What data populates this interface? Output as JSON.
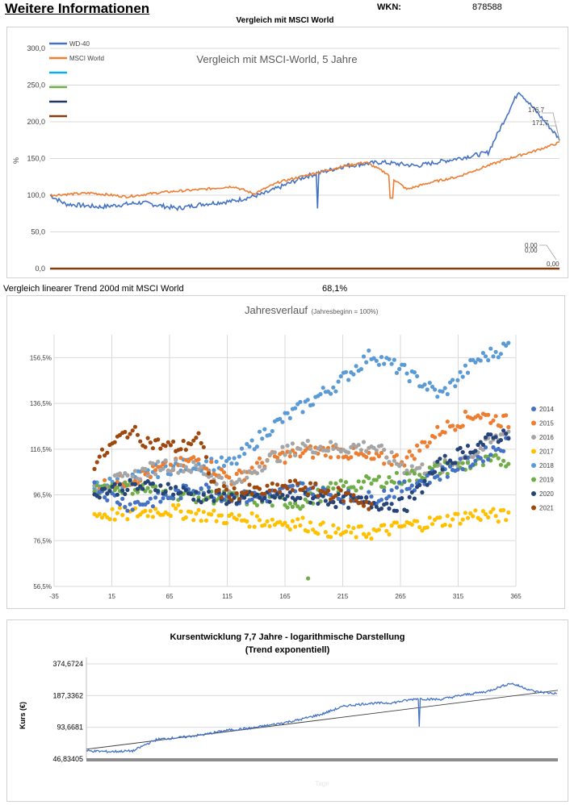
{
  "header": {
    "title": "Weitere Informationen",
    "wkn_label": "WKN:",
    "wkn_value": "878588",
    "chart1_title": "Vergleich mit MSCI World"
  },
  "trend": {
    "label": "Vergleich linearer Trend 200d mit MSCI World",
    "value": "68,1%"
  },
  "colors": {
    "wd40": "#4472c4",
    "msci": "#ed7d31",
    "cyan": "#00b0f0",
    "green": "#70ad47",
    "navy": "#1f3864",
    "brown": "#843c0c",
    "y2014": "#4472c4",
    "y2015": "#ed7d31",
    "y2016": "#a5a5a5",
    "y2017": "#ffc000",
    "y2018": "#5b9bd5",
    "y2019": "#70ad47",
    "y2020": "#264478",
    "y2021": "#9e480e"
  },
  "chart_data": [
    {
      "type": "line",
      "title": "Vergleich mit MSCI-World, 5 Jahre",
      "ylabel": "%",
      "ylim": [
        0,
        300
      ],
      "yticks": [
        "0,0",
        "50,0",
        "100,0",
        "150,0",
        "200,0",
        "250,0",
        "300,0"
      ],
      "legend": [
        "WD-40",
        "MSCI World",
        "",
        "",
        "",
        ""
      ],
      "end_labels": [
        "176,7",
        "171,7",
        "0,00",
        "0,00",
        "0,00"
      ],
      "series": [
        {
          "name": "WD-40",
          "x": [
            0,
            3,
            10,
            18,
            25,
            30,
            36,
            42,
            50,
            58,
            65,
            72,
            80,
            86,
            92,
            100
          ],
          "values": [
            100,
            88,
            84,
            90,
            82,
            88,
            92,
            102,
            125,
            140,
            145,
            140,
            150,
            158,
            242,
            176.7
          ]
        },
        {
          "name": "MSCI World",
          "x": [
            0,
            8,
            15,
            22,
            30,
            36,
            40,
            45,
            52,
            58,
            62,
            66,
            70,
            75,
            80,
            85,
            90,
            95,
            100
          ],
          "values": [
            100,
            103,
            98,
            104,
            108,
            112,
            102,
            118,
            130,
            140,
            145,
            130,
            108,
            118,
            125,
            138,
            150,
            160,
            171.7
          ]
        },
        {
          "name": "",
          "values": [
            0,
            0
          ]
        },
        {
          "name": "",
          "values": [
            0,
            0
          ]
        },
        {
          "name": "",
          "values": [
            0,
            0
          ]
        },
        {
          "name": "",
          "values": [
            0,
            0
          ]
        }
      ]
    },
    {
      "type": "scatter",
      "title": "Jahresverlauf",
      "subtitle": "(Jahresbeginn = 100%)",
      "xlim": [
        -35,
        365
      ],
      "ylim": [
        56.5,
        166.5
      ],
      "xticks": [
        "-35",
        "15",
        "65",
        "115",
        "165",
        "215",
        "265",
        "315",
        "365"
      ],
      "yticks": [
        "56,5%",
        "76,5%",
        "96,5%",
        "116,5%",
        "136,5%",
        "156,5%"
      ],
      "legend": [
        "2014",
        "2015",
        "2016",
        "2017",
        "2018",
        "2019",
        "2020",
        "2021"
      ],
      "series": [
        {
          "name": "2014",
          "days": [
            0,
            30,
            60,
            90,
            120,
            150,
            180,
            210,
            240,
            270,
            300,
            330,
            360
          ],
          "values": [
            100,
            92,
            95,
            100,
            95,
            96,
            100,
            96,
            95,
            100,
            106,
            112,
            120
          ]
        },
        {
          "name": "2015",
          "days": [
            0,
            30,
            60,
            90,
            120,
            150,
            180,
            210,
            240,
            270,
            300,
            330,
            360
          ],
          "values": [
            100,
            103,
            108,
            112,
            103,
            112,
            115,
            116,
            112,
            112,
            125,
            132,
            128
          ]
        },
        {
          "name": "2016",
          "days": [
            0,
            30,
            60,
            90,
            120,
            150,
            180,
            210,
            240,
            270,
            300,
            330,
            360
          ],
          "values": [
            100,
            104,
            110,
            108,
            100,
            112,
            118,
            117,
            118,
            108,
            108,
            115,
            125
          ]
        },
        {
          "name": "2017",
          "days": [
            0,
            30,
            60,
            90,
            120,
            150,
            180,
            210,
            240,
            270,
            300,
            330,
            360
          ],
          "values": [
            88,
            88,
            90,
            88,
            86,
            85,
            84,
            80,
            80,
            83,
            85,
            88,
            87
          ]
        },
        {
          "name": "2018",
          "days": [
            0,
            30,
            60,
            90,
            120,
            150,
            180,
            210,
            240,
            270,
            300,
            330,
            360
          ],
          "values": [
            100,
            103,
            108,
            110,
            110,
            125,
            135,
            145,
            158,
            150,
            140,
            155,
            162
          ]
        },
        {
          "name": "2019",
          "days": [
            0,
            30,
            60,
            90,
            120,
            150,
            180,
            210,
            240,
            270,
            300,
            330,
            360
          ],
          "values": [
            100,
            100,
            98,
            96,
            95,
            94,
            93,
            100,
            102,
            104,
            108,
            110,
            112
          ]
        },
        {
          "name": "2020",
          "days": [
            0,
            30,
            60,
            90,
            120,
            150,
            180,
            210,
            240,
            270,
            300,
            330,
            360
          ],
          "values": [
            98,
            100,
            100,
            96,
            95,
            95,
            96,
            94,
            93,
            92,
            110,
            118,
            124
          ]
        },
        {
          "name": "2021",
          "days": [
            0,
            15,
            30,
            45,
            60,
            75,
            90,
            105,
            120,
            135,
            150,
            165,
            180,
            195,
            210,
            225,
            240
          ],
          "values": [
            110,
            118,
            125,
            120,
            118,
            117,
            122,
            98,
            97,
            98,
            98,
            100,
            100,
            98,
            97,
            95,
            92
          ]
        }
      ]
    },
    {
      "type": "line",
      "title": "Kursentwicklung 7,7 Jahre - logarithmische Darstellung",
      "subtitle": "(Trend exponentiell)",
      "ylabel": "Kurs (€)",
      "xlabel": "Tage",
      "yscale": "log",
      "ylim": [
        46.83405,
        374.6724
      ],
      "yticks": [
        "46,83405",
        "93,6681",
        "187,3362",
        "374,6724"
      ],
      "series": [
        {
          "name": "Kurs",
          "x": [
            0,
            5,
            10,
            15,
            20,
            25,
            30,
            35,
            40,
            45,
            50,
            55,
            60,
            65,
            70,
            75,
            80,
            85,
            90,
            95,
            100
          ],
          "values": [
            56,
            55,
            56,
            72,
            75,
            80,
            88,
            92,
            100,
            110,
            125,
            150,
            158,
            160,
            175,
            172,
            190,
            205,
            245,
            205,
            195
          ]
        },
        {
          "name": "Trend",
          "x": [
            0,
            100
          ],
          "values": [
            58,
            210
          ]
        }
      ]
    }
  ]
}
